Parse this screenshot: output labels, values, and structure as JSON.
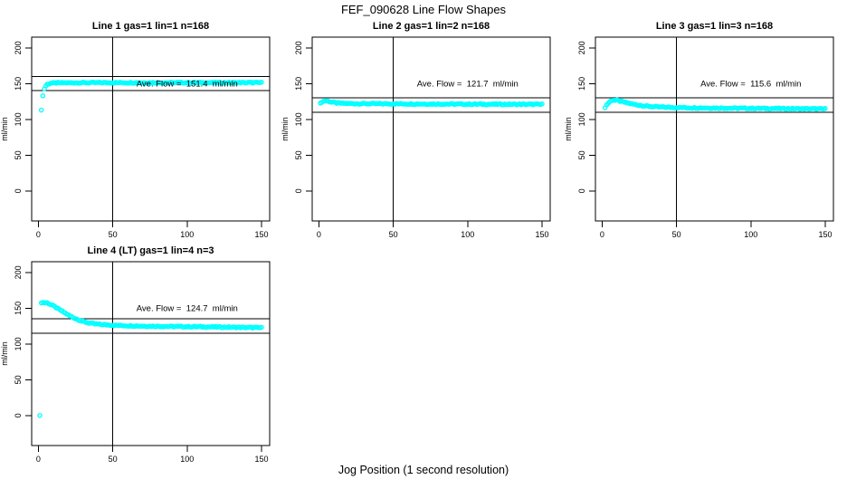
{
  "page": {
    "title": "FEF_090628  Line Flow Shapes",
    "xlabel": "Jog Position (1 second resolution)"
  },
  "colors": {
    "points": "#00ffff",
    "axis": "#000000",
    "background": "#ffffff",
    "text": "#000000"
  },
  "axes": {
    "xlim": [
      -4.5,
      155.5
    ],
    "ylim": [
      -42,
      215
    ],
    "xticks": [
      0,
      50,
      100,
      150
    ],
    "yticks": [
      0,
      50,
      100,
      150,
      200
    ]
  },
  "chart_data": [
    {
      "type": "scatter",
      "title": "Line 1 gas=1 lin=1 n=168",
      "ylabel": "ml/min",
      "ave_flow_ml_min": 151.4,
      "annotation_text": "Ave. Flow =  151.4  ml/min",
      "annotation_pos": {
        "x": 100,
        "y": 150
      },
      "ref_lines_ml_min": [
        160,
        140
      ],
      "vline_x": 50,
      "x_resolution": 1,
      "isolated_points": [
        [
          2,
          113
        ],
        [
          3,
          133
        ]
      ],
      "curve_keypoints": [
        [
          4,
          143
        ],
        [
          5,
          147
        ],
        [
          6,
          149
        ],
        [
          8,
          150.5
        ],
        [
          12,
          151
        ],
        [
          30,
          151.3
        ],
        [
          150,
          151.4
        ]
      ]
    },
    {
      "type": "scatter",
      "title": "Line 2 gas=1 lin=2 n=168",
      "ylabel": "ml/min",
      "ave_flow_ml_min": 121.7,
      "annotation_text": "Ave. Flow =  121.7  ml/min",
      "annotation_pos": {
        "x": 100,
        "y": 150
      },
      "ref_lines_ml_min": [
        130,
        110
      ],
      "vline_x": 50,
      "x_resolution": 1,
      "isolated_points": [],
      "curve_keypoints": [
        [
          1,
          122
        ],
        [
          2,
          124.5
        ],
        [
          4,
          126
        ],
        [
          6,
          125.5
        ],
        [
          9,
          124
        ],
        [
          12,
          123
        ],
        [
          16,
          122.4
        ],
        [
          25,
          122
        ],
        [
          60,
          121.7
        ],
        [
          110,
          121.2
        ],
        [
          150,
          121
        ]
      ]
    },
    {
      "type": "scatter",
      "title": "Line 3 gas=1 lin=3 n=168",
      "ylabel": "ml/min",
      "ave_flow_ml_min": 115.6,
      "annotation_text": "Ave. Flow =  115.6  ml/min",
      "annotation_pos": {
        "x": 100,
        "y": 150
      },
      "ref_lines_ml_min": [
        130,
        110
      ],
      "vline_x": 50,
      "x_resolution": 1,
      "isolated_points": [],
      "curve_keypoints": [
        [
          2,
          117
        ],
        [
          3,
          120
        ],
        [
          5,
          124.5
        ],
        [
          7,
          127
        ],
        [
          10,
          126.5
        ],
        [
          14,
          124.5
        ],
        [
          19,
          122
        ],
        [
          25,
          119.8
        ],
        [
          32,
          118
        ],
        [
          42,
          117
        ],
        [
          60,
          116.2
        ],
        [
          90,
          115.6
        ],
        [
          150,
          114.6
        ]
      ]
    },
    {
      "type": "scatter",
      "title": "Line 4 (LT) gas=1 lin=4 n=3",
      "ylabel": "ml/min",
      "ave_flow_ml_min": 124.7,
      "annotation_text": "Ave. Flow =  124.7  ml/min",
      "annotation_pos": {
        "x": 100,
        "y": 150
      },
      "ref_lines_ml_min": [
        135,
        115
      ],
      "vline_x": 50,
      "x_resolution": 1,
      "isolated_points": [
        [
          1,
          0
        ]
      ],
      "curve_keypoints": [
        [
          2,
          158
        ],
        [
          6,
          157.5
        ],
        [
          9,
          154.5
        ],
        [
          13,
          149.5
        ],
        [
          17,
          144.5
        ],
        [
          21,
          139.5
        ],
        [
          25,
          135.5
        ],
        [
          29,
          132
        ],
        [
          33,
          129.8
        ],
        [
          38,
          128
        ],
        [
          45,
          126.8
        ],
        [
          55,
          125.8
        ],
        [
          70,
          125
        ],
        [
          90,
          124.4
        ],
        [
          110,
          124
        ],
        [
          130,
          123.4
        ],
        [
          150,
          122.6
        ]
      ]
    }
  ]
}
